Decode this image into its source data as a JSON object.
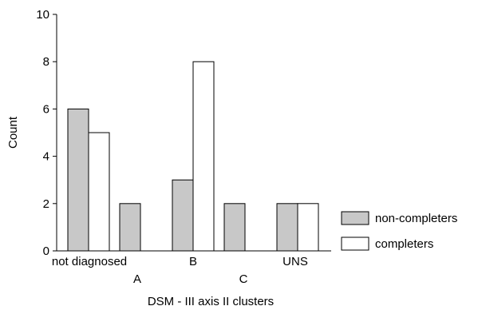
{
  "chart_data": {
    "type": "bar",
    "categories": [
      "not diagnosed",
      "A",
      "B",
      "C",
      "UNS"
    ],
    "series": [
      {
        "name": "non-completers",
        "values": [
          6,
          2,
          3,
          2,
          2
        ],
        "color": "#c8c8c8"
      },
      {
        "name": "completers",
        "values": [
          5,
          0,
          8,
          0,
          2
        ],
        "color": "#ffffff"
      }
    ],
    "title": "",
    "xlabel": "DSM - III axis II clusters",
    "ylabel": "Count",
    "ylim": [
      0,
      10
    ],
    "yticks": [
      "0",
      "2",
      "4",
      "6",
      "8",
      "10"
    ],
    "grid": false,
    "legend_position": "right"
  }
}
